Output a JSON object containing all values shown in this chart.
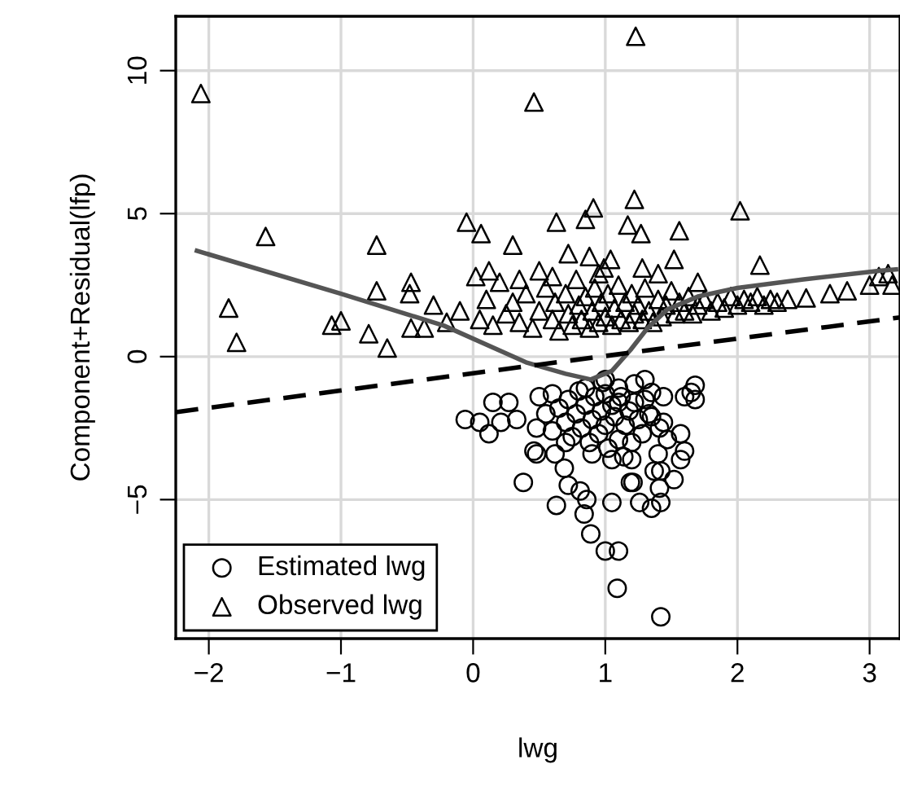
{
  "chart_data": {
    "type": "scatter",
    "xlabel": "lwg",
    "ylabel": "Component+Residual(lfp)",
    "xlim": [
      -2.25,
      3.23
    ],
    "ylim": [
      -9.86,
      11.9
    ],
    "xticks": [
      {
        "value": -2,
        "label": "−2"
      },
      {
        "value": -1,
        "label": "−1"
      },
      0,
      1,
      2,
      3
    ],
    "yticks": [
      {
        "value": -5,
        "label": "−5"
      },
      0,
      5,
      10
    ],
    "grid": true,
    "legend": "bottom left",
    "series": [
      {
        "name": "Estimated lwg",
        "marker": "circle",
        "color": "#000000",
        "x": [
          -0.06,
          0.05,
          0.12,
          0.15,
          0.21,
          0.27,
          0.33,
          0.46,
          0.38,
          0.5,
          0.48,
          0.48,
          0.62,
          0.69,
          0.72,
          0.81,
          0.86,
          0.84,
          0.89,
          1.0,
          1.1,
          1.09,
          1.42,
          1.05,
          1.21,
          1.26,
          1.35,
          1.42,
          1.41,
          1.42,
          1.52,
          1.57,
          1.6,
          1.68,
          1.68,
          1.44,
          1.35,
          1.22,
          1.3,
          1.0,
          1.1,
          1.6,
          1.65,
          1.14,
          1.19,
          1.37,
          1.4,
          1.47,
          1.57,
          1.35,
          1.41,
          1.44,
          0.63,
          0.6,
          0.65,
          0.7,
          0.72,
          0.75,
          0.78,
          0.8,
          0.82,
          0.85,
          0.88,
          0.9,
          0.92,
          0.95,
          0.97,
          1.0,
          1.0,
          1.02,
          1.05,
          1.07,
          1.1,
          1.12,
          1.15,
          1.18,
          1.2,
          1.22,
          1.25,
          1.28,
          1.3,
          0.9,
          1.05,
          0.7,
          1.2,
          0.55,
          0.6,
          1.33,
          0.98,
          0.85,
          1.1
        ],
        "values": [
          -2.2,
          -2.3,
          -2.7,
          -1.6,
          -2.3,
          -1.6,
          -2.2,
          -3.3,
          -4.4,
          -1.4,
          -2.5,
          -3.4,
          -3.4,
          -3.9,
          -4.5,
          -4.7,
          -5.0,
          -5.5,
          -6.2,
          -6.8,
          -6.8,
          -8.1,
          -9.1,
          -5.1,
          -4.4,
          -5.1,
          -5.3,
          -5.1,
          -4.6,
          -4.0,
          -4.3,
          -3.6,
          -3.3,
          -1.0,
          -1.5,
          -1.4,
          -1.25,
          -0.95,
          -0.8,
          -0.8,
          -1.6,
          -1.4,
          -1.25,
          -3.5,
          -4.4,
          -4.0,
          -3.4,
          -2.9,
          -2.7,
          -2.1,
          -2.5,
          -2.3,
          -5.2,
          -1.3,
          -1.8,
          -2.3,
          -1.5,
          -2.8,
          -2.0,
          -1.2,
          -2.5,
          -1.7,
          -3.0,
          -2.2,
          -1.4,
          -2.7,
          -1.9,
          -1.3,
          -2.4,
          -3.2,
          -1.7,
          -2.1,
          -2.9,
          -1.4,
          -2.4,
          -1.9,
          -3.0,
          -1.6,
          -2.2,
          -2.7,
          -1.5,
          -3.4,
          -3.6,
          -3.0,
          -3.6,
          -2.0,
          -2.6,
          -2.0,
          -0.9,
          -1.1,
          -1.1
        ]
      },
      {
        "name": "Observed lwg",
        "marker": "triangle",
        "color": "#000000",
        "x": [
          -2.06,
          1.23,
          0.46,
          -1.57,
          -0.73,
          -0.05,
          0.06,
          0.3,
          -1.85,
          -0.73,
          -0.47,
          -0.48,
          -1.79,
          -1.07,
          -1.0,
          -0.79,
          -0.65,
          -0.47,
          -0.37,
          0.91,
          0.85,
          0.63,
          1.22,
          1.17,
          1.27,
          1.56,
          2.02,
          0.72,
          0.88,
          1.04,
          1.52,
          0.99,
          1.28,
          2.17,
          2.38,
          2.52,
          2.7,
          2.83,
          3.0,
          3.07,
          3.14,
          3.17,
          0.05,
          0.1,
          0.15,
          0.2,
          0.25,
          0.3,
          0.35,
          0.4,
          0.45,
          0.5,
          0.55,
          0.6,
          0.62,
          0.65,
          0.7,
          0.72,
          0.75,
          0.78,
          0.8,
          0.82,
          0.85,
          0.88,
          0.9,
          0.92,
          0.95,
          0.97,
          1.0,
          1.02,
          1.05,
          1.07,
          1.1,
          1.12,
          1.15,
          1.18,
          1.2,
          1.22,
          1.25,
          1.28,
          1.3,
          1.33,
          1.36,
          1.4,
          1.43,
          1.46,
          1.5,
          1.53,
          1.56,
          1.6,
          1.63,
          1.66,
          1.7,
          1.75,
          1.8,
          1.85,
          1.9,
          1.95,
          2.0,
          2.05,
          2.1,
          2.15,
          2.2,
          2.25,
          2.3,
          -0.1,
          -0.2,
          -0.3,
          0.02,
          0.12,
          0.5,
          0.6,
          1.4,
          1.7,
          0.35,
          0.95
        ],
        "values": [
          9.2,
          11.2,
          8.9,
          4.2,
          3.9,
          4.7,
          4.3,
          3.9,
          1.7,
          2.3,
          2.6,
          2.2,
          0.5,
          1.1,
          1.25,
          0.8,
          0.3,
          1.0,
          1.0,
          5.2,
          4.8,
          4.7,
          5.5,
          4.6,
          4.3,
          4.4,
          5.1,
          3.6,
          3.5,
          3.4,
          3.4,
          3.1,
          3.1,
          3.2,
          2.0,
          2.05,
          2.2,
          2.3,
          2.5,
          2.8,
          2.9,
          2.5,
          1.3,
          2.0,
          1.1,
          2.6,
          1.5,
          1.9,
          1.2,
          2.2,
          1.0,
          1.6,
          2.4,
          1.3,
          1.9,
          0.9,
          2.2,
          1.5,
          1.1,
          2.7,
          1.8,
          1.3,
          2.1,
          1.0,
          1.6,
          2.4,
          1.2,
          1.9,
          1.4,
          2.2,
          1.1,
          1.7,
          2.5,
          1.3,
          1.9,
          1.2,
          2.2,
          1.5,
          1.8,
          1.3,
          2.4,
          1.6,
          1.2,
          2.0,
          1.4,
          1.8,
          2.3,
          1.5,
          1.9,
          1.6,
          2.1,
          1.5,
          1.8,
          2.0,
          1.6,
          1.9,
          1.7,
          2.1,
          1.8,
          2.0,
          1.9,
          2.1,
          1.8,
          2.0,
          1.9,
          1.6,
          1.2,
          1.8,
          2.8,
          3.0,
          3.0,
          2.8,
          2.9,
          2.6,
          2.7,
          2.9
        ]
      },
      {
        "type": "line",
        "line_style": "solid",
        "color": "#555555",
        "x": [
          -2.09,
          -1.0,
          -0.22,
          0.4,
          0.7,
          0.89,
          1.05,
          1.19,
          1.32,
          1.47,
          1.7,
          2.0,
          2.5,
          3.07,
          3.2
        ],
        "values": [
          3.7,
          2.2,
          1.08,
          -0.2,
          -0.6,
          -0.8,
          -0.5,
          0.23,
          1.0,
          1.65,
          2.1,
          2.4,
          2.7,
          3.0,
          3.05
        ]
      },
      {
        "type": "line",
        "line_style": "dashed",
        "color": "#000000",
        "x": [
          -2.25,
          3.23
        ],
        "values": [
          -1.94,
          1.37
        ]
      }
    ]
  }
}
